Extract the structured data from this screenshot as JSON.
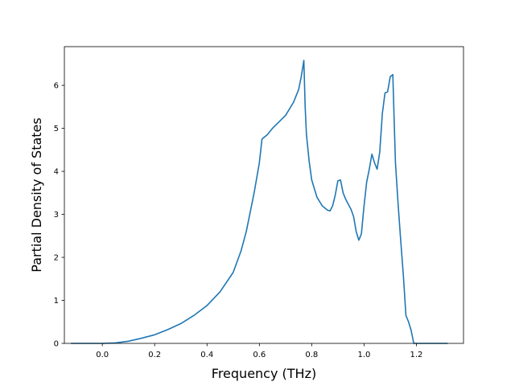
{
  "chart_data": {
    "type": "line",
    "title": "",
    "xlabel": "Frequency (THz)",
    "ylabel": "Partial Density of States",
    "xlim": [
      -0.145,
      1.38
    ],
    "ylim": [
      0,
      6.9
    ],
    "grid": false,
    "x_ticks": [
      "0.0",
      "0.2",
      "0.4",
      "0.6",
      "0.8",
      "1.0",
      "1.2"
    ],
    "y_ticks": [
      "0",
      "1",
      "2",
      "3",
      "4",
      "5",
      "6"
    ],
    "series": [
      {
        "color": "#1f77b4",
        "x": [
          -0.12,
          0.0,
          0.05,
          0.1,
          0.15,
          0.2,
          0.25,
          0.3,
          0.35,
          0.4,
          0.45,
          0.5,
          0.53,
          0.55,
          0.58,
          0.6,
          0.61,
          0.62,
          0.63,
          0.65,
          0.7,
          0.73,
          0.75,
          0.76,
          0.77,
          0.775,
          0.78,
          0.79,
          0.8,
          0.82,
          0.84,
          0.86,
          0.87,
          0.88,
          0.89,
          0.9,
          0.91,
          0.92,
          0.93,
          0.95,
          0.96,
          0.97,
          0.98,
          0.99,
          1.0,
          1.01,
          1.02,
          1.03,
          1.04,
          1.05,
          1.06,
          1.07,
          1.08,
          1.09,
          1.1,
          1.11,
          1.115,
          1.12,
          1.13,
          1.14,
          1.15,
          1.16,
          1.17,
          1.18,
          1.19,
          1.2,
          1.21,
          1.25,
          1.32
        ],
        "values": [
          0.0,
          0.0,
          0.01,
          0.05,
          0.12,
          0.2,
          0.32,
          0.46,
          0.65,
          0.88,
          1.2,
          1.65,
          2.15,
          2.6,
          3.5,
          4.2,
          4.75,
          4.8,
          4.85,
          5.0,
          5.3,
          5.6,
          5.9,
          6.2,
          6.58,
          5.5,
          4.85,
          4.25,
          3.8,
          3.4,
          3.2,
          3.1,
          3.08,
          3.2,
          3.45,
          3.78,
          3.8,
          3.5,
          3.35,
          3.12,
          2.95,
          2.6,
          2.4,
          2.55,
          3.2,
          3.75,
          4.05,
          4.4,
          4.2,
          4.05,
          4.45,
          5.35,
          5.82,
          5.85,
          6.2,
          6.25,
          5.2,
          4.2,
          3.25,
          2.4,
          1.6,
          0.65,
          0.5,
          0.3,
          0.0,
          0.0,
          0.0,
          0.0,
          0.0
        ]
      }
    ]
  }
}
